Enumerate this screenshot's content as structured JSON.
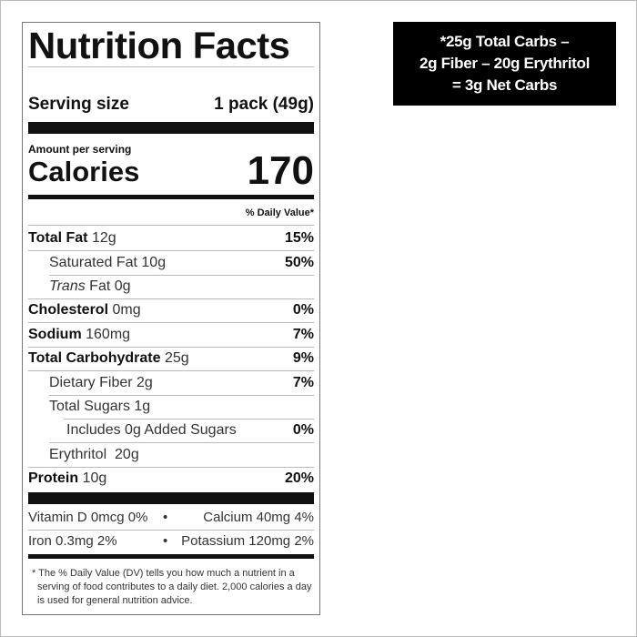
{
  "label": {
    "title": "Nutrition Facts",
    "serving_size_label": "Serving size",
    "serving_size_value": "1 pack (49g)",
    "amount_per_serving": "Amount per serving",
    "calories_label": "Calories",
    "calories_value": "170",
    "daily_value_header": "% Daily Value*",
    "nutrients": [
      {
        "name": "Total Fat",
        "amount": "12g",
        "dv": "15%"
      },
      {
        "name": "Saturated Fat",
        "amount": "10g",
        "dv": "50%"
      },
      {
        "name": "Trans",
        "suffix": "Fat 0g",
        "dv": ""
      },
      {
        "name": "Cholesterol",
        "amount": "0mg",
        "dv": "0%"
      },
      {
        "name": "Sodium",
        "amount": "160mg",
        "dv": "7%"
      },
      {
        "name": "Total Carbohydrate",
        "amount": "25g",
        "dv": "9%"
      },
      {
        "name": "Dietary Fiber",
        "amount": "2g",
        "dv": "7%"
      },
      {
        "name": "Total Sugars",
        "amount": "1g",
        "dv": ""
      },
      {
        "name": "Includes 0g Added Sugars",
        "amount": "",
        "dv": "0%"
      },
      {
        "name": "Erythritol",
        "amount": "20g",
        "dv": ""
      },
      {
        "name": "Protein",
        "amount": "10g",
        "dv": "20%"
      }
    ],
    "vitamins": [
      {
        "left": "Vitamin D 0mcg 0%",
        "right": "Calcium 40mg 4%"
      },
      {
        "left": "Iron 0.3mg 2%",
        "right": "Potassium 120mg 2%"
      }
    ],
    "separator": "•",
    "footnote": "* The % Daily Value (DV) tells you how much a nutrient in a serving of food contributes to a daily diet. 2,000 calories a day is used for general nutrition advice."
  },
  "callout": {
    "line1": "*25g Total Carbs –",
    "line2": "2g Fiber – 20g Erythritol",
    "line3": "= 3g Net Carbs"
  }
}
